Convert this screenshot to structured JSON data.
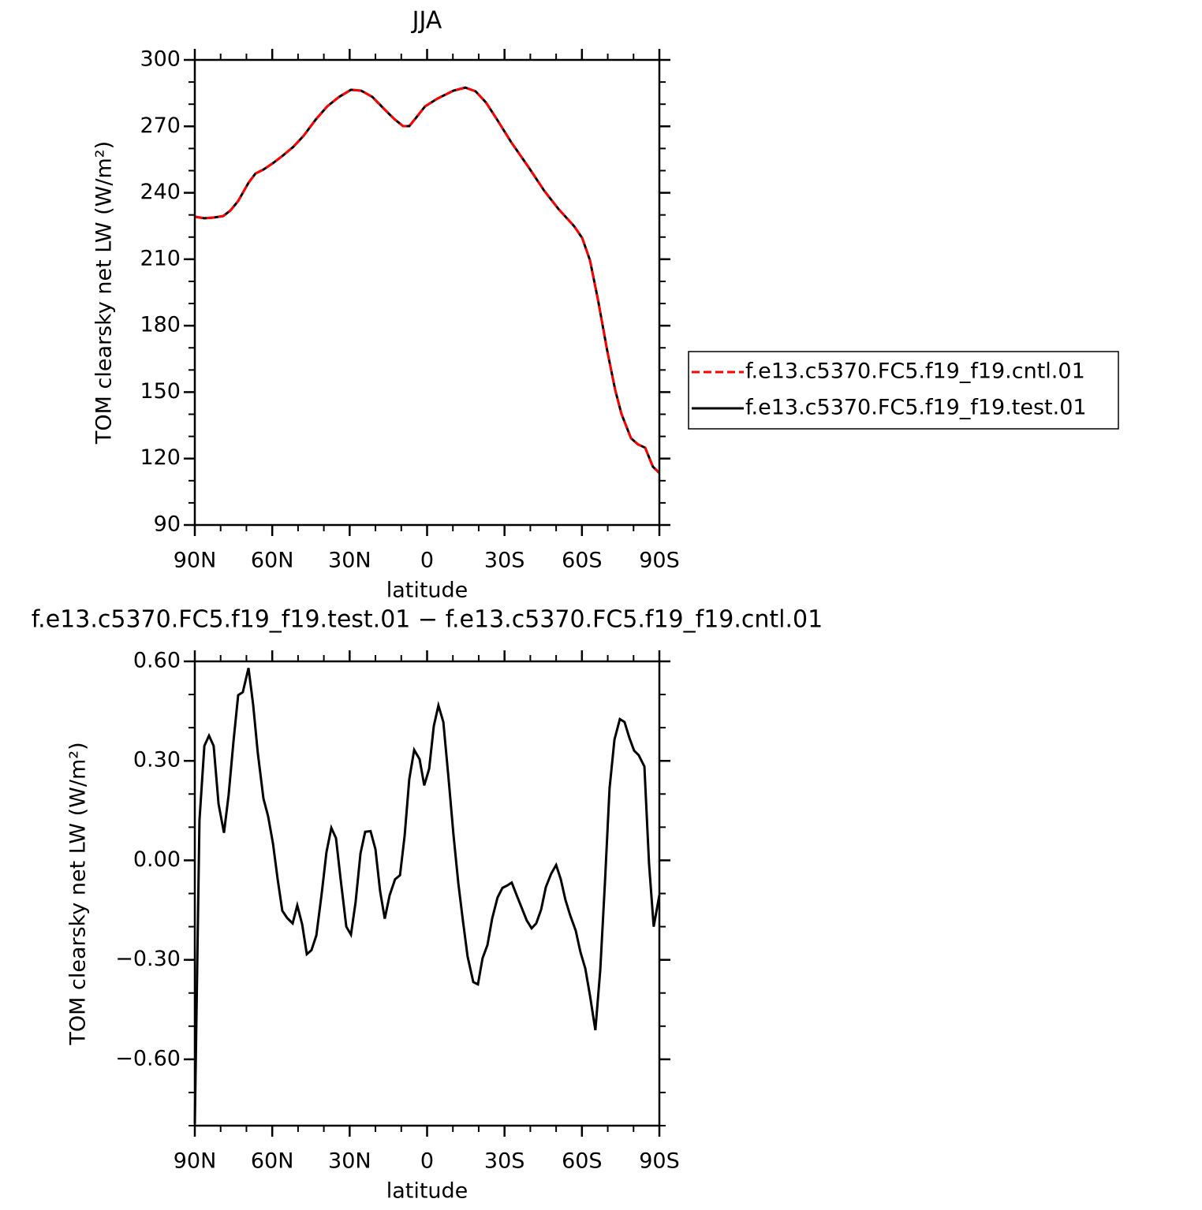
{
  "chart_data": [
    {
      "type": "line",
      "title": "JJA",
      "xlabel": "latitude",
      "ylabel": "TOM clearsky net LW (W/m²)",
      "x": [
        90,
        86.3,
        82.7,
        79.0,
        76.2,
        73.2,
        69.2,
        66.5,
        63.4,
        59.7,
        56.1,
        51.8,
        47.8,
        43.2,
        38.7,
        34.1,
        29.5,
        25.5,
        21.2,
        16.7,
        12.7,
        9.3,
        6.9,
        4.4,
        0.8,
        -4.1,
        -10.2,
        -14.8,
        -18.8,
        -22.8,
        -27.0,
        -32.5,
        -39.3,
        -45.4,
        -50.9,
        -57.0,
        -60.1,
        -63.1,
        -66.2,
        -69.8,
        -72.9,
        -75.3,
        -79.0,
        -81.7,
        -84.5,
        -87.5,
        -90
      ],
      "series": [
        {
          "name": "f.e13.c5370.FC5.f19_f19.cntl.01",
          "color": "#ff0000",
          "line_style": "dashed",
          "values": [
            229.2,
            228.5,
            228.8,
            229.5,
            232,
            236.3,
            244.5,
            248.7,
            250.5,
            253.4,
            256.6,
            260.8,
            265.8,
            273,
            279,
            283.3,
            286.5,
            286.1,
            283.3,
            277.9,
            273.3,
            270.1,
            270.1,
            273.7,
            279,
            282.6,
            286.1,
            287.5,
            285.8,
            280.8,
            273.3,
            263,
            251.6,
            240.9,
            232.7,
            224.9,
            219.6,
            209.6,
            191.8,
            168.7,
            150.9,
            140.2,
            129.2,
            126.4,
            124.9,
            116.3,
            113.5
          ]
        },
        {
          "name": "f.e13.c5370.FC5.f19_f19.test.01",
          "color": "#000000",
          "line_style": "solid",
          "values": [
            229.2,
            228.5,
            228.8,
            229.5,
            232,
            236.3,
            244.5,
            248.7,
            250.5,
            253.4,
            256.6,
            260.8,
            265.8,
            273,
            279,
            283.3,
            286.5,
            286.1,
            283.3,
            277.9,
            273.3,
            270.1,
            270.1,
            273.7,
            279,
            282.6,
            286.1,
            287.5,
            285.8,
            280.8,
            273.3,
            263,
            251.6,
            240.9,
            232.7,
            224.9,
            219.6,
            209.6,
            191.8,
            168.7,
            150.9,
            140.2,
            129.2,
            126.4,
            124.9,
            116.3,
            113.5
          ]
        }
      ],
      "xlim": [
        90,
        -90
      ],
      "xticks": [
        {
          "value": 90,
          "label": "90N"
        },
        {
          "value": 60,
          "label": "60N"
        },
        {
          "value": 30,
          "label": "30N"
        },
        0,
        {
          "value": -30,
          "label": "30S"
        },
        {
          "value": -60,
          "label": "60S"
        },
        {
          "value": -90,
          "label": "90S"
        }
      ],
      "ylim": [
        90,
        300
      ],
      "yticks": [
        90,
        120,
        150,
        180,
        210,
        240,
        270,
        300
      ],
      "legend": "right"
    },
    {
      "type": "line",
      "title": "f.e13.c5370.FC5.f19_f19.test.01 − f.e13.c5370.FC5.f19_f19.cntl.01",
      "xlabel": "latitude",
      "ylabel": "TOM clearsky net LW (W/m²)",
      "x": [
        90,
        88.2,
        86.3,
        84.5,
        82.7,
        80.8,
        78.7,
        76.9,
        75.0,
        73.2,
        71.4,
        69.2,
        67.4,
        65.6,
        63.4,
        61.6,
        59.7,
        57.9,
        56.1,
        54.2,
        52.1,
        50.3,
        48.4,
        46.6,
        44.8,
        42.9,
        40.8,
        39.0,
        37.1,
        35.3,
        33.5,
        31.3,
        29.5,
        27.7,
        25.8,
        24.0,
        21.9,
        20.0,
        18.2,
        16.4,
        14.5,
        12.4,
        10.5,
        8.7,
        6.9,
        5.0,
        2.9,
        1.1,
        -0.8,
        -2.6,
        -4.4,
        -6.3,
        -8.4,
        -10.2,
        -12.1,
        -13.9,
        -15.7,
        -17.9,
        -19.7,
        -21.5,
        -23.4,
        -25.2,
        -27.3,
        -29.2,
        -31.0,
        -32.8,
        -34.7,
        -36.5,
        -38.6,
        -40.5,
        -42.3,
        -44.2,
        -46.0,
        -48.1,
        -50.0,
        -51.8,
        -53.6,
        -55.5,
        -57.6,
        -59.4,
        -61.3,
        -63.1,
        -65.2,
        -67.1,
        -68.9,
        -70.7,
        -72.6,
        -74.7,
        -76.5,
        -78.4,
        -80.2,
        -82.0,
        -84.2,
        -86.0,
        -87.8,
        -90
      ],
      "series": [
        {
          "color": "#000000",
          "line_style": "solid",
          "values": [
            -0.795,
            0.12,
            0.345,
            0.376,
            0.345,
            0.17,
            0.083,
            0.197,
            0.36,
            0.498,
            0.507,
            0.58,
            0.47,
            0.324,
            0.186,
            0.133,
            0.05,
            -0.057,
            -0.152,
            -0.174,
            -0.19,
            -0.136,
            -0.193,
            -0.283,
            -0.271,
            -0.226,
            -0.098,
            0.024,
            0.098,
            0.067,
            -0.057,
            -0.2,
            -0.224,
            -0.126,
            0.021,
            0.086,
            0.088,
            0.033,
            -0.093,
            -0.176,
            -0.105,
            -0.057,
            -0.045,
            0.074,
            0.245,
            0.333,
            0.305,
            0.226,
            0.276,
            0.405,
            0.467,
            0.417,
            0.24,
            0.079,
            -0.069,
            -0.183,
            -0.29,
            -0.367,
            -0.374,
            -0.295,
            -0.255,
            -0.176,
            -0.112,
            -0.083,
            -0.076,
            -0.067,
            -0.105,
            -0.14,
            -0.181,
            -0.205,
            -0.19,
            -0.148,
            -0.081,
            -0.04,
            -0.014,
            -0.057,
            -0.119,
            -0.167,
            -0.212,
            -0.276,
            -0.326,
            -0.407,
            -0.512,
            -0.331,
            -0.069,
            0.217,
            0.364,
            0.426,
            0.417,
            0.369,
            0.331,
            0.317,
            0.283,
            -0.01,
            -0.2,
            -0.105
          ]
        }
      ],
      "xlim": [
        90,
        -90
      ],
      "xticks": [
        {
          "value": 90,
          "label": "90N"
        },
        {
          "value": 60,
          "label": "60N"
        },
        {
          "value": 30,
          "label": "30N"
        },
        0,
        {
          "value": -30,
          "label": "30S"
        },
        {
          "value": -60,
          "label": "60S"
        },
        {
          "value": -90,
          "label": "90S"
        }
      ],
      "ylim": [
        -0.8,
        0.6
      ],
      "yticks": [
        {
          "value": -0.6,
          "label": "−0.60"
        },
        {
          "value": -0.3,
          "label": "−0.30"
        },
        {
          "value": 0,
          "label": "0.00"
        },
        {
          "value": 0.3,
          "label": "0.30"
        },
        {
          "value": 0.6,
          "label": "0.60"
        }
      ]
    }
  ]
}
